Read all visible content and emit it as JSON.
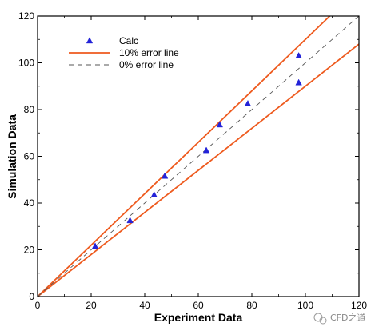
{
  "chart_data": {
    "type": "scatter",
    "title": "",
    "xlabel": "Experiment Data",
    "ylabel": "Simulation Data",
    "xlim": [
      0,
      120
    ],
    "ylim": [
      0,
      120
    ],
    "xticks": [
      0,
      20,
      40,
      60,
      80,
      100,
      120
    ],
    "yticks": [
      0,
      20,
      40,
      60,
      80,
      100,
      120
    ],
    "grid": false,
    "legend_position": "top-left",
    "series": [
      {
        "name": "Calc",
        "kind": "scatter",
        "marker": "triangle",
        "color": "#2323d8",
        "x": [
          21.5,
          34.5,
          43.5,
          47.5,
          63.0,
          68.0,
          78.5,
          97.5,
          97.5
        ],
        "y": [
          21.5,
          32.5,
          43.5,
          51.5,
          62.5,
          73.5,
          82.5,
          103.0,
          91.5
        ]
      },
      {
        "name": "10% error line",
        "kind": "line",
        "style": "solid",
        "color": "#ee5a1e",
        "segments": [
          {
            "x": [
              0,
              109.1
            ],
            "y": [
              0,
              120
            ]
          },
          {
            "x": [
              0,
              120
            ],
            "y": [
              0,
              108
            ]
          }
        ]
      },
      {
        "name": "0% error line",
        "kind": "line",
        "style": "dashed",
        "color": "#555555",
        "segments": [
          {
            "x": [
              0,
              120
            ],
            "y": [
              0,
              120
            ]
          }
        ]
      }
    ]
  },
  "watermark": {
    "text": "CFD之道"
  }
}
